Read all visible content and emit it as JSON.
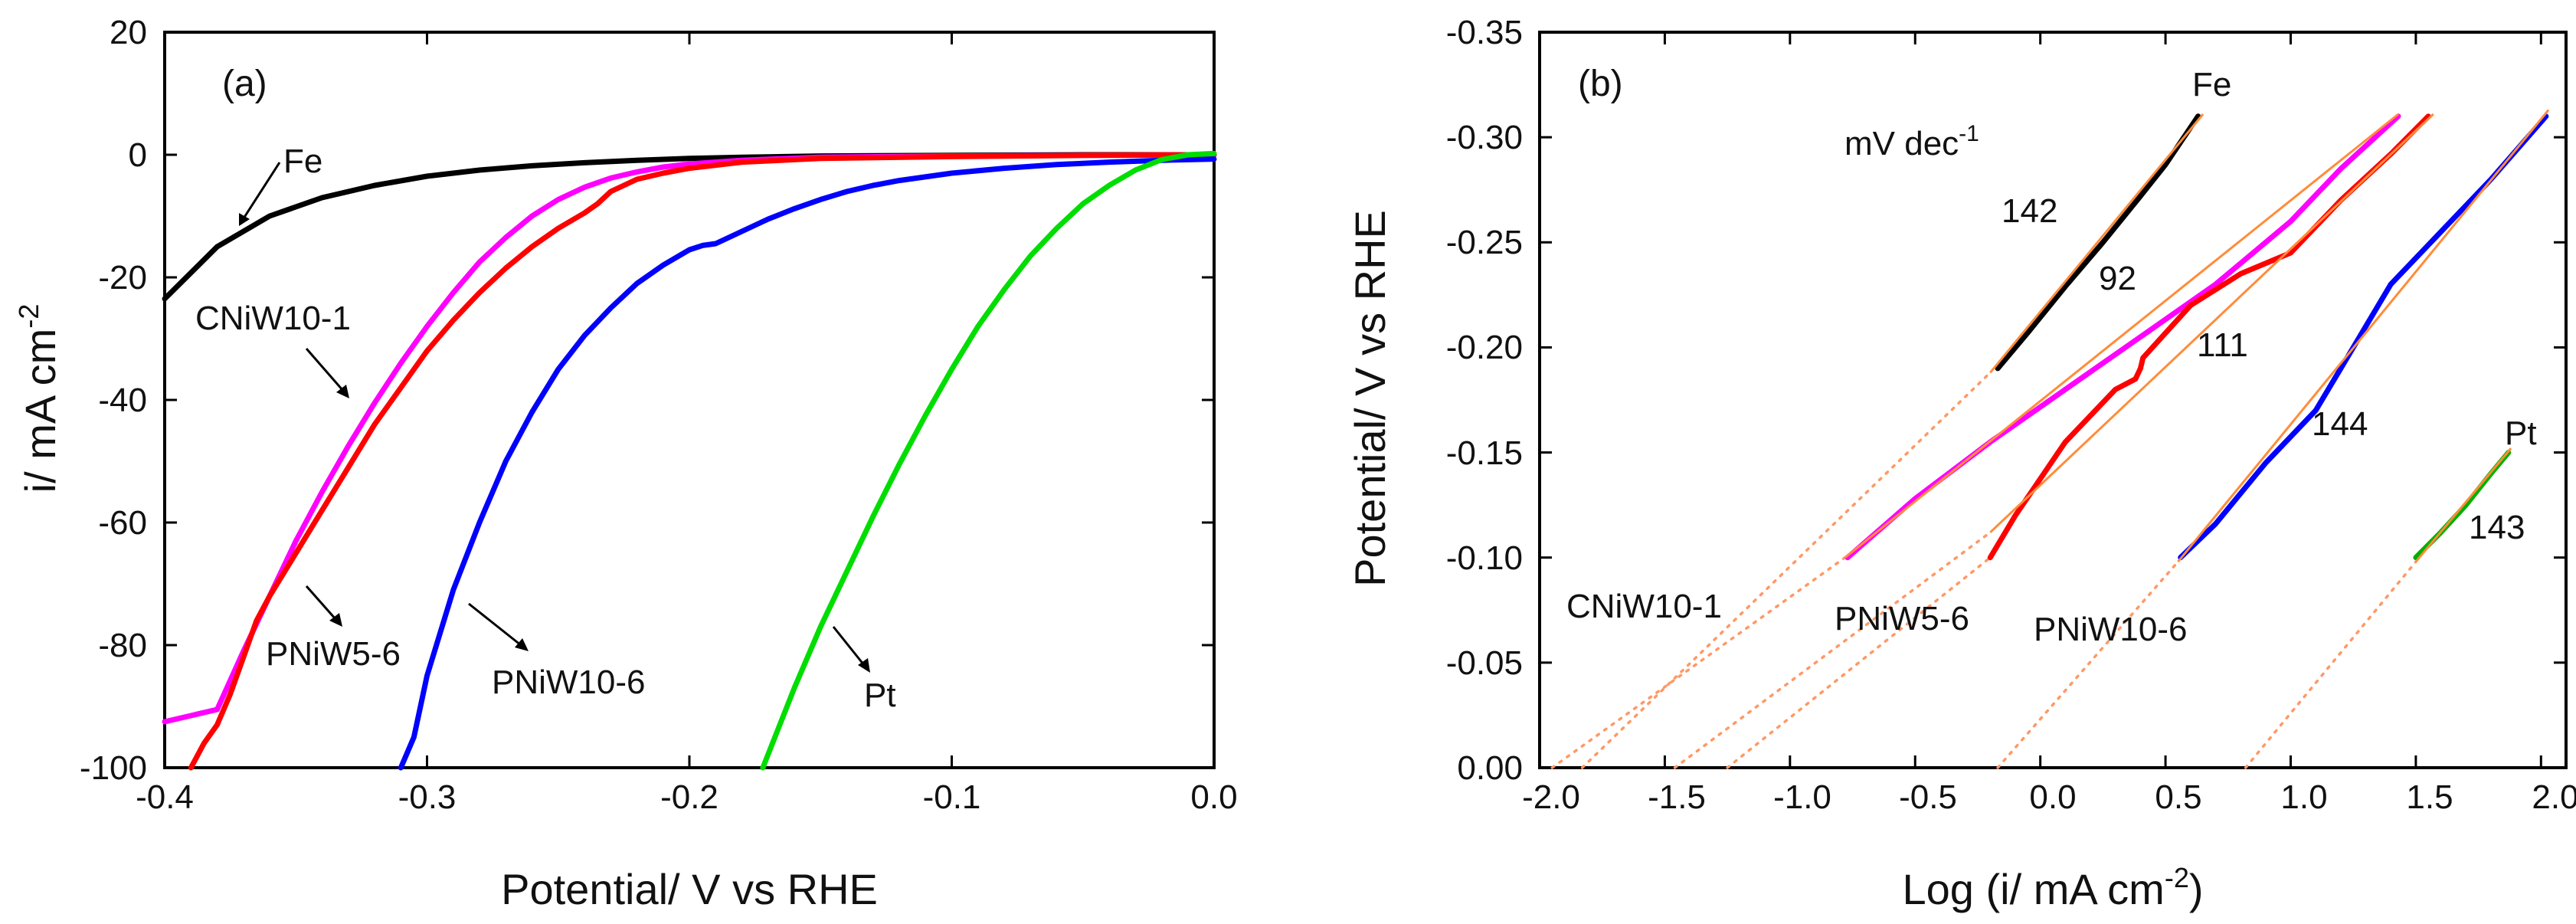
{
  "chart_data": [
    {
      "type": "line",
      "panel_label": "(a)",
      "xlabel": "Potential/ V vs RHE",
      "ylabel_main": "i/ mA cm",
      "ylabel_sup": "-2",
      "xlim": [
        -0.4,
        0.0
      ],
      "ylim": [
        -100,
        20
      ],
      "xticks": [
        -0.4,
        -0.3,
        -0.2,
        -0.1,
        0.0
      ],
      "xtick_labels": [
        "-0.4",
        "-0.3",
        "-0.2",
        "-0.1",
        "0.0"
      ],
      "yticks": [
        20,
        0,
        -20,
        -40,
        -60,
        -80,
        -100
      ],
      "ytick_labels": [
        "20",
        "0",
        "-20",
        "-40",
        "-60",
        "-80",
        "-100"
      ],
      "series": [
        {
          "name": "Fe",
          "color": "#000000",
          "x": [
            -0.4,
            -0.38,
            -0.36,
            -0.34,
            -0.32,
            -0.3,
            -0.28,
            -0.26,
            -0.24,
            -0.22,
            -0.2,
            -0.18,
            -0.15,
            -0.1,
            -0.05,
            0.0
          ],
          "y": [
            -23.5,
            -15,
            -10,
            -7,
            -5,
            -3.5,
            -2.5,
            -1.8,
            -1.3,
            -0.9,
            -0.6,
            -0.4,
            -0.2,
            -0.1,
            0,
            0
          ]
        },
        {
          "name": "CNiW10-1",
          "color": "#ff00ff",
          "x": [
            -0.4,
            -0.38,
            -0.37,
            -0.36,
            -0.35,
            -0.34,
            -0.33,
            -0.32,
            -0.31,
            -0.3,
            -0.29,
            -0.28,
            -0.27,
            -0.26,
            -0.25,
            -0.24,
            -0.23,
            -0.22,
            -0.21,
            -0.2,
            -0.18,
            -0.15,
            -0.1,
            -0.05,
            0.0
          ],
          "y": [
            -92.5,
            -90.5,
            -81,
            -72,
            -63,
            -55,
            -47.5,
            -40.5,
            -34,
            -28,
            -22.5,
            -17.5,
            -13.5,
            -10,
            -7.3,
            -5.3,
            -3.8,
            -2.8,
            -2,
            -1.5,
            -0.9,
            -0.4,
            -0.2,
            -0.1,
            0
          ]
        },
        {
          "name": "PNiW5-6",
          "color": "#ff0000",
          "x": [
            -0.39,
            -0.385,
            -0.38,
            -0.375,
            -0.37,
            -0.365,
            -0.36,
            -0.35,
            -0.34,
            -0.33,
            -0.32,
            -0.31,
            -0.3,
            -0.29,
            -0.28,
            -0.27,
            -0.26,
            -0.25,
            -0.24,
            -0.235,
            -0.23,
            -0.22,
            -0.21,
            -0.2,
            -0.18,
            -0.15,
            -0.1,
            -0.05,
            0.0
          ],
          "y": [
            -100,
            -96,
            -93,
            -88,
            -82,
            -76,
            -72,
            -65,
            -58,
            -51,
            -44,
            -38,
            -32,
            -27,
            -22.5,
            -18.5,
            -15,
            -12,
            -9.5,
            -8,
            -6,
            -4,
            -3,
            -2.2,
            -1.2,
            -0.6,
            -0.3,
            -0.1,
            0
          ]
        },
        {
          "name": "PNiW10-6",
          "color": "#0000ff",
          "x": [
            -0.31,
            -0.305,
            -0.3,
            -0.29,
            -0.28,
            -0.27,
            -0.26,
            -0.25,
            -0.24,
            -0.23,
            -0.22,
            -0.21,
            -0.2,
            -0.195,
            -0.19,
            -0.18,
            -0.17,
            -0.16,
            -0.15,
            -0.14,
            -0.13,
            -0.12,
            -0.1,
            -0.08,
            -0.06,
            -0.04,
            -0.02,
            0.0
          ],
          "y": [
            -100,
            -95,
            -85,
            -71,
            -60,
            -50,
            -42,
            -35,
            -29.5,
            -25,
            -21,
            -18,
            -15.5,
            -14.8,
            -14.5,
            -12.5,
            -10.5,
            -8.8,
            -7.3,
            -6,
            -5,
            -4.2,
            -3,
            -2.2,
            -1.6,
            -1.2,
            -0.9,
            -0.7
          ]
        },
        {
          "name": "Pt",
          "color": "#00dd00",
          "x": [
            -0.172,
            -0.16,
            -0.15,
            -0.14,
            -0.13,
            -0.12,
            -0.11,
            -0.1,
            -0.09,
            -0.08,
            -0.07,
            -0.06,
            -0.05,
            -0.04,
            -0.03,
            -0.02,
            -0.01,
            0.0
          ],
          "y": [
            -100,
            -87,
            -77,
            -68,
            -59,
            -50.5,
            -42.5,
            -35,
            -28,
            -22,
            -16.5,
            -12,
            -8,
            -5,
            -2.5,
            -0.8,
            0,
            0.2
          ]
        }
      ],
      "annotations": [
        {
          "text": "Fe",
          "target": "Fe"
        },
        {
          "text": "CNiW10-1",
          "target": "CNiW10-1"
        },
        {
          "text": "PNiW5-6",
          "target": "PNiW5-6"
        },
        {
          "text": "PNiW10-6",
          "target": "PNiW10-6"
        },
        {
          "text": "Pt",
          "target": "Pt"
        }
      ]
    },
    {
      "type": "line",
      "panel_label": "(b)",
      "xlabel_main": "Log (i/ mA cm",
      "xlabel_sup": "-2",
      "xlabel_end": ")",
      "ylabel": "Potential/ V vs RHE",
      "xlim": [
        -2.0,
        2.1
      ],
      "ylim": [
        0.0,
        -0.35
      ],
      "xticks": [
        -2.0,
        -1.5,
        -1.0,
        -0.5,
        0.0,
        0.5,
        1.0,
        1.5,
        2.0
      ],
      "xtick_labels": [
        "-2.0",
        "-1.5",
        "-1.0",
        "-0.5",
        "0.0",
        "0.5",
        "1.0",
        "1.5",
        "2.0"
      ],
      "yticks": [
        -0.35,
        -0.3,
        -0.25,
        -0.2,
        -0.15,
        -0.1,
        -0.05,
        0.0
      ],
      "ytick_labels": [
        "-0.35",
        "-0.30",
        "-0.25",
        "-0.20",
        "-0.15",
        "-0.10",
        "-0.05",
        "0.00"
      ],
      "unit_label_main": "mV dec",
      "unit_label_sup": "-1",
      "series": [
        {
          "name": "Fe",
          "color": "#000000",
          "slope_label": "142",
          "x": [
            -0.17,
            -0.05,
            0.1,
            0.25,
            0.4,
            0.5,
            0.63
          ],
          "y": [
            -0.19,
            -0.207,
            -0.229,
            -0.25,
            -0.272,
            -0.287,
            -0.31
          ]
        },
        {
          "name": "CNiW10-1",
          "color": "#ff00ff",
          "slope_label": "92",
          "x": [
            -0.77,
            -0.5,
            -0.2,
            0.1,
            0.4,
            0.7,
            1.0,
            1.2,
            1.43
          ],
          "y": [
            -0.1,
            -0.128,
            -0.155,
            -0.18,
            -0.205,
            -0.23,
            -0.26,
            -0.285,
            -0.31
          ]
        },
        {
          "name": "PNiW5-6",
          "color": "#ff0000",
          "slope_label": "111",
          "x": [
            -0.2,
            -0.1,
            0.1,
            0.3,
            0.38,
            0.4,
            0.41,
            0.6,
            0.8,
            1.0,
            1.2,
            1.4,
            1.55
          ],
          "y": [
            -0.1,
            -0.12,
            -0.155,
            -0.18,
            -0.185,
            -0.19,
            -0.195,
            -0.22,
            -0.235,
            -0.245,
            -0.27,
            -0.292,
            -0.31
          ]
        },
        {
          "name": "PNiW10-6",
          "color": "#0000ff",
          "slope_label": "144",
          "x": [
            0.56,
            0.7,
            0.9,
            1.1,
            1.2,
            1.4,
            1.6,
            1.8,
            2.02
          ],
          "y": [
            -0.1,
            -0.116,
            -0.145,
            -0.17,
            -0.19,
            -0.23,
            -0.255,
            -0.28,
            -0.31
          ]
        },
        {
          "name": "Pt",
          "color": "#00b000",
          "slope_label": "143",
          "x": [
            1.5,
            1.6,
            1.7,
            1.8,
            1.87
          ],
          "y": [
            -0.1,
            -0.112,
            -0.125,
            -0.14,
            -0.15
          ]
        }
      ],
      "fits": [
        {
          "x": [
            -0.2,
            0.65
          ],
          "y": [
            -0.188,
            -0.311
          ]
        },
        {
          "x": [
            -0.78,
            1.43
          ],
          "y": [
            -0.1,
            -0.311
          ]
        },
        {
          "x": [
            -0.2,
            1.57
          ],
          "y": [
            -0.112,
            -0.311
          ]
        },
        {
          "x": [
            0.55,
            2.03
          ],
          "y": [
            -0.098,
            -0.313
          ]
        },
        {
          "x": [
            1.5,
            1.88
          ],
          "y": [
            -0.098,
            -0.152
          ]
        }
      ],
      "extrapolations": [
        {
          "x": [
            -1.83,
            -0.2
          ],
          "y": [
            0.0,
            -0.188
          ]
        },
        {
          "x": [
            -1.95,
            -0.78
          ],
          "y": [
            0.0,
            -0.1
          ]
        },
        {
          "x": [
            -1.46,
            -0.2
          ],
          "y": [
            0.0,
            -0.112
          ]
        },
        {
          "x": [
            -1.25,
            -0.2
          ],
          "y": [
            0.0,
            -0.1
          ]
        },
        {
          "x": [
            -0.17,
            0.55
          ],
          "y": [
            0.0,
            -0.098
          ]
        },
        {
          "x": [
            0.82,
            1.5
          ],
          "y": [
            0.0,
            -0.098
          ]
        }
      ],
      "annotations": [
        {
          "text": "Fe"
        },
        {
          "text": "Pt"
        },
        {
          "text": "CNiW10-1"
        },
        {
          "text": "PNiW5-6"
        },
        {
          "text": "PNiW10-6"
        }
      ]
    }
  ]
}
